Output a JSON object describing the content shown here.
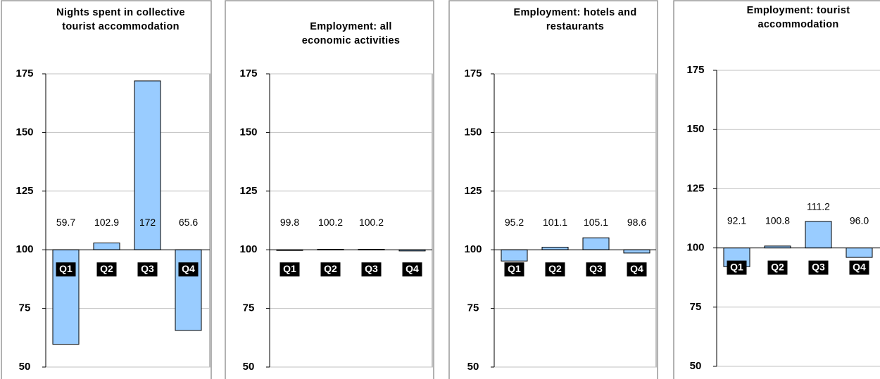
{
  "chart_data": [
    {
      "type": "bar",
      "title": "Nights spent in collective tourist accommodation",
      "categories": [
        "Q1",
        "Q2",
        "Q3",
        "Q4"
      ],
      "values": [
        59.7,
        102.9,
        172,
        65.6
      ],
      "baseline": 100,
      "color": "#99ccff",
      "ylim": [
        50,
        175
      ],
      "yticks": [
        50,
        75,
        100,
        125,
        150,
        175
      ],
      "grid": true
    },
    {
      "type": "bar",
      "title": "Employment: all economic activities",
      "categories": [
        "Q1",
        "Q2",
        "Q3",
        "Q4"
      ],
      "values": [
        99.8,
        100.2,
        100.2,
        99.5
      ],
      "value_labels": [
        "99.8",
        "100.2",
        "100.2",
        null
      ],
      "baseline": 100,
      "color": "#99ccff",
      "ylim": [
        50,
        175
      ],
      "yticks": [
        50,
        75,
        100,
        125,
        150,
        175
      ],
      "grid": true
    },
    {
      "type": "bar",
      "title": "Employment: hotels and restaurants",
      "categories": [
        "Q1",
        "Q2",
        "Q3",
        "Q4"
      ],
      "values": [
        95.2,
        101.1,
        105.1,
        98.6
      ],
      "baseline": 100,
      "color": "#99ccff",
      "ylim": [
        50,
        175
      ],
      "yticks": [
        50,
        75,
        100,
        125,
        150,
        175
      ],
      "grid": true
    },
    {
      "type": "bar",
      "title": "Employment: tourist accommodation",
      "categories": [
        "Q1",
        "Q2",
        "Q3",
        "Q4"
      ],
      "values": [
        92.1,
        100.8,
        111.2,
        96.0
      ],
      "value_labels": [
        "92.1",
        "100.8",
        "111.2",
        "96.0"
      ],
      "baseline": 100,
      "color": "#99ccff",
      "ylim": [
        50,
        175
      ],
      "yticks": [
        50,
        75,
        100,
        125,
        150,
        175
      ],
      "grid": true
    }
  ]
}
